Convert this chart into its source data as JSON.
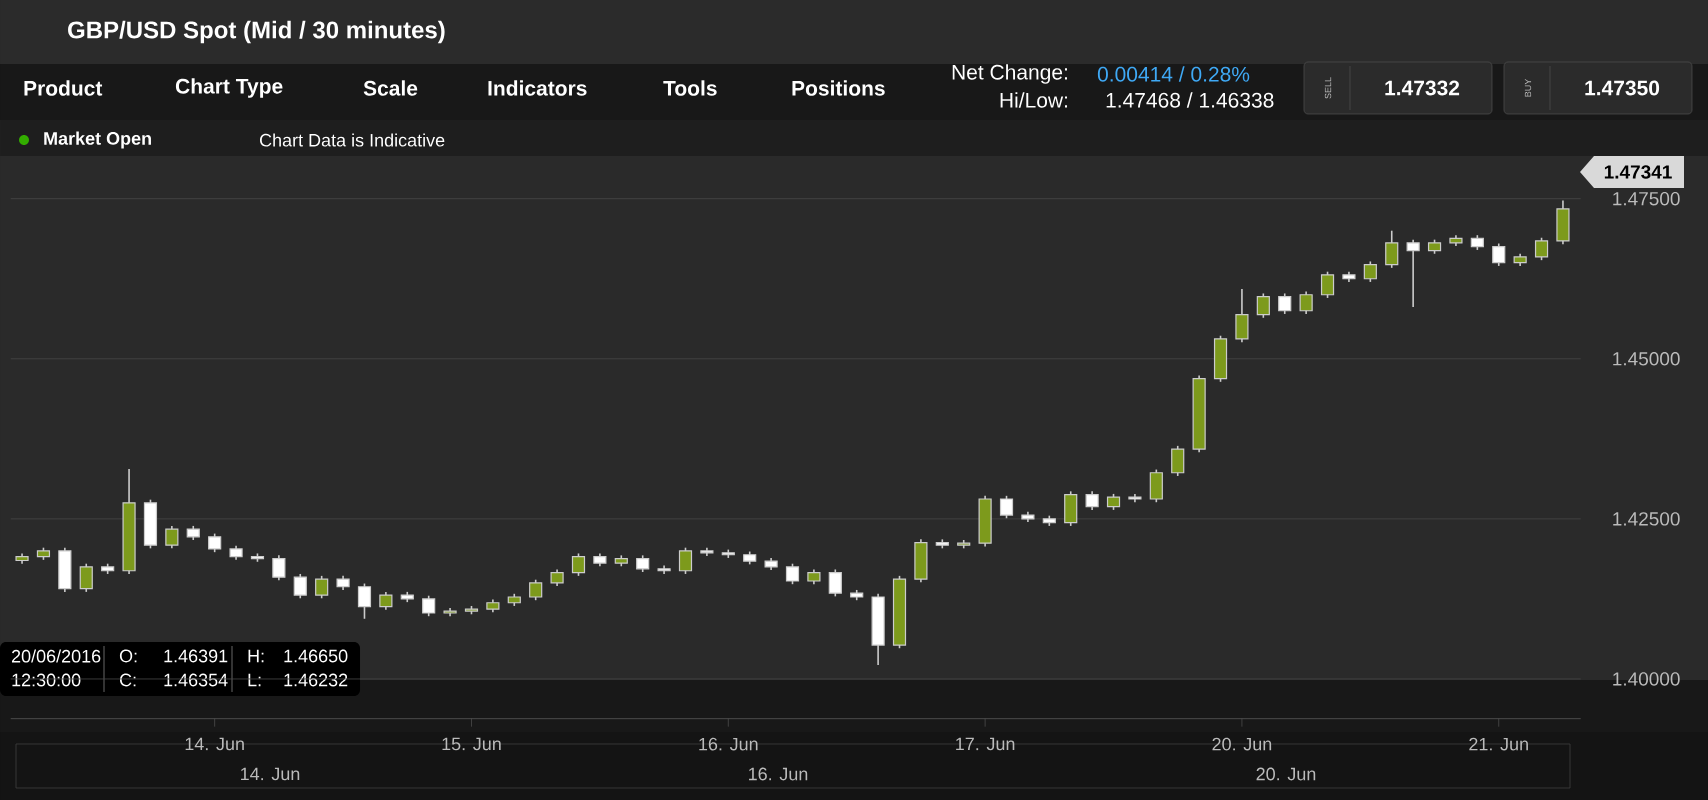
{
  "chart_data": {
    "type": "candlestick",
    "title": "GBP/USD Spot (Mid / 30 minutes)",
    "categories": [
      null,
      null,
      null,
      null,
      null,
      null,
      null,
      null,
      null,
      "14. Jun",
      null,
      null,
      null,
      null,
      null,
      null,
      null,
      null,
      null,
      null,
      null,
      "15. Jun",
      null,
      null,
      null,
      null,
      null,
      null,
      null,
      null,
      null,
      null,
      null,
      "16. Jun",
      null,
      null,
      null,
      null,
      null,
      null,
      null,
      null,
      null,
      null,
      null,
      "17. Jun",
      null,
      null,
      null,
      null,
      null,
      null,
      null,
      null,
      null,
      null,
      null,
      "20. Jun",
      null,
      null,
      null,
      null,
      null,
      null,
      null,
      null,
      null,
      null,
      null,
      "21. Jun",
      null,
      null,
      null
    ],
    "ohlc": [
      [
        1.4185,
        1.4196,
        1.418,
        1.4191
      ],
      [
        1.4191,
        1.4205,
        1.4186,
        1.42
      ],
      [
        1.42,
        1.4205,
        1.4136,
        1.4141
      ],
      [
        1.4141,
        1.418,
        1.4136,
        1.4175
      ],
      [
        1.4175,
        1.418,
        1.4164,
        1.4169
      ],
      [
        1.4169,
        1.4328,
        1.4164,
        1.4275
      ],
      [
        1.4275,
        1.428,
        1.4204,
        1.4209
      ],
      [
        1.4209,
        1.4239,
        1.4204,
        1.4234
      ],
      [
        1.4234,
        1.4239,
        1.4217,
        1.4222
      ],
      [
        1.4222,
        1.4227,
        1.4198,
        1.4203
      ],
      [
        1.4203,
        1.4208,
        1.4186,
        1.4191
      ],
      [
        1.4191,
        1.4196,
        1.4183,
        1.4188
      ],
      [
        1.4188,
        1.4193,
        1.4154,
        1.4159
      ],
      [
        1.4159,
        1.4164,
        1.4126,
        1.4131
      ],
      [
        1.4131,
        1.4161,
        1.4126,
        1.4156
      ],
      [
        1.4156,
        1.4161,
        1.4139,
        1.4144
      ],
      [
        1.4144,
        1.4149,
        1.4094,
        1.4113
      ],
      [
        1.4113,
        1.4136,
        1.4108,
        1.4131
      ],
      [
        1.4131,
        1.4136,
        1.412,
        1.4125
      ],
      [
        1.4125,
        1.413,
        1.4098,
        1.4103
      ],
      [
        1.4103,
        1.4111,
        1.4098,
        1.4106
      ],
      [
        1.4106,
        1.4114,
        1.4101,
        1.4109
      ],
      [
        1.4109,
        1.4124,
        1.4104,
        1.4119
      ],
      [
        1.4119,
        1.4133,
        1.4114,
        1.4128
      ],
      [
        1.4128,
        1.4155,
        1.4123,
        1.415
      ],
      [
        1.415,
        1.4171,
        1.4145,
        1.4166
      ],
      [
        1.4166,
        1.4196,
        1.4161,
        1.4191
      ],
      [
        1.4191,
        1.4196,
        1.4176,
        1.4181
      ],
      [
        1.4181,
        1.4193,
        1.4176,
        1.4188
      ],
      [
        1.4188,
        1.4193,
        1.4167,
        1.4172
      ],
      [
        1.4172,
        1.4177,
        1.4164,
        1.4169
      ],
      [
        1.4169,
        1.4205,
        1.4164,
        1.42
      ],
      [
        1.42,
        1.4205,
        1.4192,
        1.4197
      ],
      [
        1.4197,
        1.4202,
        1.4189,
        1.4194
      ],
      [
        1.4194,
        1.4199,
        1.4179,
        1.4184
      ],
      [
        1.4184,
        1.4189,
        1.417,
        1.4175
      ],
      [
        1.4175,
        1.418,
        1.4148,
        1.4153
      ],
      [
        1.4153,
        1.4171,
        1.4148,
        1.4166
      ],
      [
        1.4166,
        1.4171,
        1.4129,
        1.4134
      ],
      [
        1.4134,
        1.4139,
        1.4123,
        1.4128
      ],
      [
        1.4128,
        1.4133,
        1.4022,
        1.4053
      ],
      [
        1.4053,
        1.4161,
        1.4048,
        1.4156
      ],
      [
        1.4156,
        1.4218,
        1.4151,
        1.4213
      ],
      [
        1.4213,
        1.4218,
        1.4204,
        1.4209
      ],
      [
        1.4209,
        1.4217,
        1.4204,
        1.4212
      ],
      [
        1.4212,
        1.4286,
        1.4207,
        1.4281
      ],
      [
        1.4281,
        1.4286,
        1.4251,
        1.4256
      ],
      [
        1.4256,
        1.4261,
        1.4245,
        1.425
      ],
      [
        1.425,
        1.4255,
        1.4239,
        1.4244
      ],
      [
        1.4244,
        1.4293,
        1.4239,
        1.4288
      ],
      [
        1.4288,
        1.4293,
        1.4264,
        1.4269
      ],
      [
        1.4269,
        1.4289,
        1.4264,
        1.4284
      ],
      [
        1.4284,
        1.4289,
        1.4276,
        1.4281
      ],
      [
        1.4281,
        1.4327,
        1.4276,
        1.4322
      ],
      [
        1.4322,
        1.4364,
        1.4317,
        1.4359
      ],
      [
        1.4359,
        1.4474,
        1.4354,
        1.4469
      ],
      [
        1.4469,
        1.4536,
        1.4464,
        1.4531
      ],
      [
        1.4531,
        1.4609,
        1.4526,
        1.4569
      ],
      [
        1.4569,
        1.4602,
        1.4564,
        1.4597
      ],
      [
        1.4597,
        1.4602,
        1.457,
        1.4575
      ],
      [
        1.4575,
        1.4605,
        1.457,
        1.46
      ],
      [
        1.46,
        1.4636,
        1.4595,
        1.4631
      ],
      [
        1.4631,
        1.4636,
        1.462,
        1.4625
      ],
      [
        1.4625,
        1.4652,
        1.462,
        1.4647
      ],
      [
        1.4647,
        1.47,
        1.4642,
        1.4681
      ],
      [
        1.4681,
        1.4686,
        1.4581,
        1.4669
      ],
      [
        1.4669,
        1.4686,
        1.4664,
        1.4681
      ],
      [
        1.4681,
        1.4693,
        1.4676,
        1.4688
      ],
      [
        1.4688,
        1.4693,
        1.467,
        1.4675
      ],
      [
        1.4675,
        1.468,
        1.4645,
        1.465
      ],
      [
        1.465,
        1.4664,
        1.4645,
        1.4659
      ],
      [
        1.4659,
        1.4689,
        1.4654,
        1.4684
      ],
      [
        1.4684,
        1.4747,
        1.4679,
        1.4734
      ]
    ],
    "colors": [
      "#7d9a1c",
      "#7d9a1c",
      "#ffffff",
      "#7d9a1c",
      "#ffffff",
      "#7d9a1c",
      "#ffffff",
      "#7d9a1c",
      "#ffffff",
      "#ffffff",
      "#ffffff",
      "#ffffff",
      "#ffffff",
      "#ffffff",
      "#7d9a1c",
      "#ffffff",
      "#ffffff",
      "#7d9a1c",
      "#ffffff",
      "#ffffff",
      "#7d9a1c",
      "#7d9a1c",
      "#7d9a1c",
      "#7d9a1c",
      "#7d9a1c",
      "#7d9a1c",
      "#7d9a1c",
      "#ffffff",
      "#7d9a1c",
      "#ffffff",
      "#ffffff",
      "#7d9a1c",
      "#ffffff",
      "#ffffff",
      "#ffffff",
      "#ffffff",
      "#ffffff",
      "#7d9a1c",
      "#ffffff",
      "#ffffff",
      "#ffffff",
      "#7d9a1c",
      "#7d9a1c",
      "#ffffff",
      "#7d9a1c",
      "#7d9a1c",
      "#ffffff",
      "#ffffff",
      "#ffffff",
      "#7d9a1c",
      "#ffffff",
      "#7d9a1c",
      "#ffffff",
      "#7d9a1c",
      "#7d9a1c",
      "#7d9a1c",
      "#7d9a1c",
      "#7d9a1c",
      "#7d9a1c",
      "#ffffff",
      "#7d9a1c",
      "#7d9a1c",
      "#ffffff",
      "#7d9a1c",
      "#7d9a1c",
      "#ffffff",
      "#7d9a1c",
      "#7d9a1c",
      "#ffffff",
      "#ffffff",
      "#7d9a1c",
      "#7d9a1c",
      "#7d9a1c"
    ],
    "ylim": [
      1.3938,
      1.475
    ],
    "yticks": [
      {
        "value": 1.4,
        "label": "1.40000"
      },
      {
        "value": 1.425,
        "label": "1.42500"
      },
      {
        "value": 1.45,
        "label": "1.45000"
      },
      {
        "value": 1.475,
        "label": "1.47500"
      }
    ],
    "grid": "y",
    "annotations": [
      "Product",
      "Chart Type",
      "Scale",
      "Indicators",
      "Tools",
      "Positions",
      "Net Change:",
      "0.00414 / 0.28%",
      "Hi/Low:",
      "1.47468 / 1.46338",
      "SELL",
      "1.47332",
      "BUY",
      "1.47350",
      "Market Open",
      "Chart Data is Indicative",
      "20/06/2016",
      "12:30:00",
      "O:",
      "1.46391",
      "C:",
      "1.46354",
      "H:",
      "1.46650",
      "L:",
      "1.46232",
      "14. Jun",
      "16. Jun",
      "20. Jun",
      "1.47341"
    ]
  }
}
